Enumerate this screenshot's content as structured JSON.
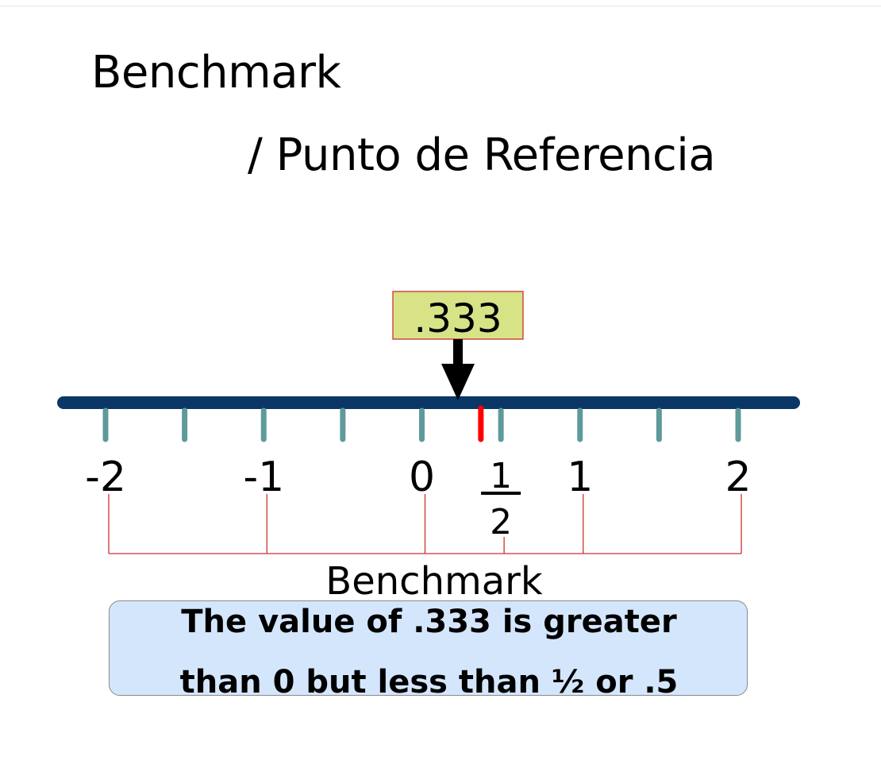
{
  "title": {
    "line1": "Benchmark",
    "line2": "/ Punto de Referencia"
  },
  "number_line": {
    "min": -2,
    "max": 2,
    "minor_step": 0.5,
    "labels": [
      {
        "value": -2,
        "text": "-2"
      },
      {
        "value": -1,
        "text": "-1"
      },
      {
        "value": 0,
        "text": "0"
      },
      {
        "value": 1,
        "text": "1"
      },
      {
        "value": 2,
        "text": "2"
      }
    ],
    "fraction_label": {
      "value": 0.5,
      "numerator": "1",
      "denominator": "2"
    },
    "marked_value": {
      "value": 0.333,
      "text": ".333"
    },
    "benchmark_values": [
      -2,
      -1,
      0,
      0.5,
      1,
      2
    ],
    "benchmark_label": "Benchmark",
    "colors": {
      "axis": "#0b3766",
      "tick": "#5f9a9a",
      "marker": "#ff0000",
      "value_box_fill": "#d7e386",
      "value_box_border": "#d03030",
      "bracket": "#d03030",
      "arrow": "#000000"
    }
  },
  "explanation": {
    "line1": "The value of .333 is greater",
    "line2": "than 0 but less than ½ or .5",
    "fill": "#d4e6fb"
  }
}
